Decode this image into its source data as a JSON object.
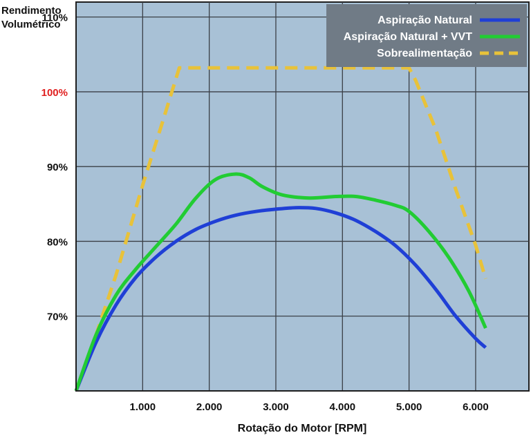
{
  "chart_data": {
    "type": "line",
    "ylabel_lines": [
      "Rendimento",
      "Volumétrico"
    ],
    "xlabel": "Rotação do Motor [RPM]",
    "xlim": [
      0,
      6800
    ],
    "ylim": [
      60,
      112
    ],
    "x_ticks": [
      {
        "value": 1000,
        "label": "1.000"
      },
      {
        "value": 2000,
        "label": "2.000"
      },
      {
        "value": 3000,
        "label": "3.000"
      },
      {
        "value": 4000,
        "label": "4.000"
      },
      {
        "value": 5000,
        "label": "5.000"
      },
      {
        "value": 6000,
        "label": "6.000"
      }
    ],
    "y_ticks": [
      {
        "value": 70,
        "label": "70%"
      },
      {
        "value": 80,
        "label": "80%"
      },
      {
        "value": 90,
        "label": "90%"
      },
      {
        "value": 100,
        "label": "100%",
        "highlight": true
      },
      {
        "value": 110,
        "label": "110%"
      }
    ],
    "grid": true,
    "legend_position": "top-right",
    "series": [
      {
        "name": "Aspiração Natural",
        "color": "#1f3fd6",
        "style": "solid",
        "x": [
          0,
          300,
          600,
          900,
          1200,
          1500,
          1800,
          2100,
          2400,
          2700,
          3000,
          3300,
          3600,
          3900,
          4200,
          4500,
          4800,
          5100,
          5400,
          5700,
          6000,
          6150
        ],
        "y": [
          60,
          66.5,
          71.5,
          75.2,
          77.9,
          80.0,
          81.6,
          82.7,
          83.5,
          84.0,
          84.3,
          84.5,
          84.4,
          83.8,
          82.8,
          81.3,
          79.4,
          76.8,
          73.6,
          70.0,
          67.0,
          65.8
        ]
      },
      {
        "name": "Aspiração Natural + VVT",
        "color": "#22cc33",
        "style": "solid",
        "x": [
          0,
          300,
          600,
          900,
          1200,
          1500,
          1800,
          2100,
          2400,
          2600,
          2800,
          3100,
          3500,
          3900,
          4200,
          4500,
          4800,
          5000,
          5300,
          5600,
          5900,
          6150
        ],
        "y": [
          60,
          67.5,
          72.8,
          76.3,
          79.3,
          82.3,
          85.8,
          88.3,
          89.0,
          88.5,
          87.3,
          86.2,
          85.8,
          86.0,
          86.0,
          85.5,
          84.8,
          84.0,
          81.3,
          77.8,
          73.3,
          68.4
        ]
      },
      {
        "name": "Sobrealimentação",
        "color": "#e8c23a",
        "style": "dashed",
        "x": [
          0,
          300,
          600,
          1000,
          1300,
          1550,
          2000,
          3000,
          4000,
          5000,
          5100,
          5400,
          5700,
          6000,
          6150
        ],
        "y": [
          60,
          67.5,
          75.5,
          87.5,
          96.0,
          103.2,
          103.2,
          103.2,
          103.2,
          103.2,
          101.5,
          95.0,
          87.0,
          79.5,
          75.0
        ]
      }
    ]
  }
}
